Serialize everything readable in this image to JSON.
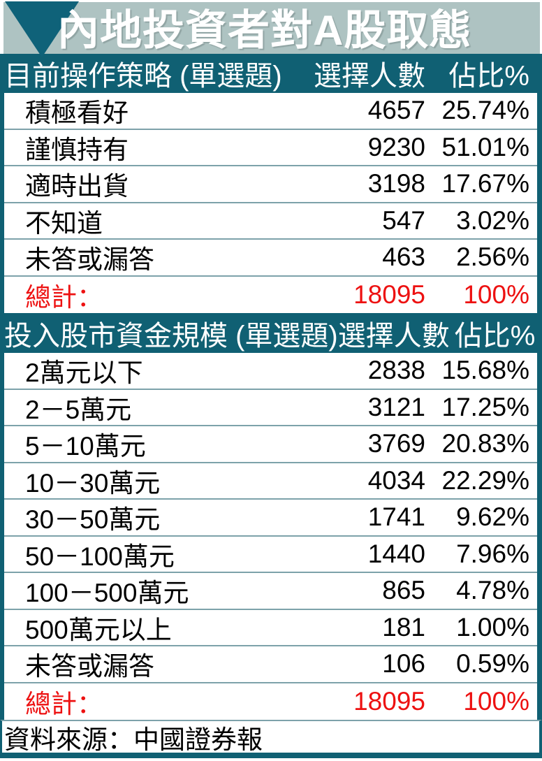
{
  "title": "內地投資者對A股取態",
  "colors": {
    "teal_header": "#106073",
    "triangle": "#0f6279",
    "banner_bg": "#aec3c2",
    "separator": "#7da2aa",
    "total_red": "#ed1111",
    "title_text": "#ffffff"
  },
  "sections": [
    {
      "header": {
        "label": "目前操作策略 (單選題)",
        "count_label": "選擇人數",
        "pct_label": "佔比%"
      },
      "rows": [
        {
          "label": "積極看好",
          "count": "4657",
          "pct": "25.74%"
        },
        {
          "label": "謹慎持有",
          "count": "9230",
          "pct": "51.01%"
        },
        {
          "label": "適時出貨",
          "count": "3198",
          "pct": "17.67%"
        },
        {
          "label": "不知道",
          "count": "547",
          "pct": "3.02%"
        },
        {
          "label": "未答或漏答",
          "count": "463",
          "pct": "2.56%"
        }
      ],
      "total": {
        "label": "總計：",
        "count": "18095",
        "pct": "100%"
      }
    },
    {
      "header": {
        "label": "投入股市資金規模 (單選題)",
        "count_label": "選擇人數",
        "pct_label": "佔比%"
      },
      "rows": [
        {
          "label": "2萬元以下",
          "count": "2838",
          "pct": "15.68%"
        },
        {
          "label": "2－5萬元",
          "count": "3121",
          "pct": "17.25%"
        },
        {
          "label": "5－10萬元",
          "count": "3769",
          "pct": "20.83%"
        },
        {
          "label": "10－30萬元",
          "count": "4034",
          "pct": "22.29%"
        },
        {
          "label": "30－50萬元",
          "count": "1741",
          "pct": "9.62%"
        },
        {
          "label": "50－100萬元",
          "count": "1440",
          "pct": "7.96%"
        },
        {
          "label": "100－500萬元",
          "count": "865",
          "pct": "4.78%"
        },
        {
          "label": "500萬元以上",
          "count": "181",
          "pct": "1.00%"
        },
        {
          "label": "未答或漏答",
          "count": "106",
          "pct": "0.59%"
        }
      ],
      "total": {
        "label": "總計：",
        "count": "18095",
        "pct": "100%"
      }
    }
  ],
  "footer": {
    "source": "資料來源：中國證券報"
  },
  "chart_data": [
    {
      "type": "table",
      "title": "目前操作策略 (單選題)",
      "columns": [
        "選擇人數",
        "佔比%"
      ],
      "categories": [
        "積極看好",
        "謹慎持有",
        "適時出貨",
        "不知道",
        "未答或漏答"
      ],
      "counts": [
        4657,
        9230,
        3198,
        547,
        463
      ],
      "percentages": [
        25.74,
        51.01,
        17.67,
        3.02,
        2.56
      ],
      "total": {
        "label": "總計",
        "count": 18095,
        "percentage": 100
      }
    },
    {
      "type": "table",
      "title": "投入股市資金規模 (單選題)",
      "columns": [
        "選擇人數",
        "佔比%"
      ],
      "categories": [
        "2萬元以下",
        "2－5萬元",
        "5－10萬元",
        "10－30萬元",
        "30－50萬元",
        "50－100萬元",
        "100－500萬元",
        "500萬元以上",
        "未答或漏答"
      ],
      "counts": [
        2838,
        3121,
        3769,
        4034,
        1741,
        1440,
        865,
        181,
        106
      ],
      "percentages": [
        15.68,
        17.25,
        20.83,
        22.29,
        9.62,
        7.96,
        4.78,
        1.0,
        0.59
      ],
      "total": {
        "label": "總計",
        "count": 18095,
        "percentage": 100
      }
    }
  ]
}
